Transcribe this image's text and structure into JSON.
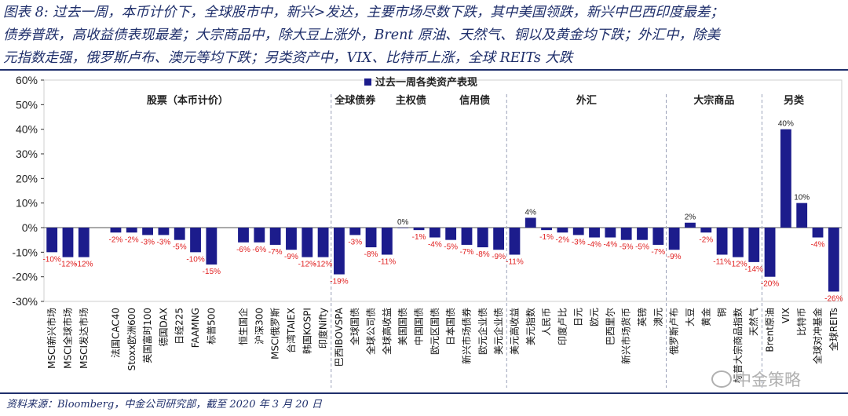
{
  "header": {
    "title_line1": "图表 8: 过去一周，本币计价下，全球股市中，新兴>发达，主要市场尽数下跌，其中美国领跌，新兴中巴西印度最差；",
    "title_line2": "债券普跌，高收益债表现最差；大宗商品中，除大豆上涨外，Brent 原油、天然气、铜以及黄金均下跌；外汇中，除美",
    "title_line3": "元指数走强，俄罗斯卢布、澳元等均下跌；另类资产中，VIX、比特币上涨，全球 REITs 大跌"
  },
  "footer": {
    "source": "资料来源：Bloomberg，中金公司研究部，截至 2020 年 3 月 20 日",
    "watermark": "中金策略"
  },
  "colors": {
    "bar": "#1c1c8c",
    "negative_label": "#e02020",
    "positive_label": "#222222",
    "divider": "#9aa0b8"
  },
  "chart_data": {
    "type": "bar",
    "legend": "过去一周各类资产表现",
    "legend_position": "top-center",
    "ylim": [
      -30,
      60
    ],
    "yticks": [
      "60%",
      "50%",
      "40%",
      "30%",
      "20%",
      "10%",
      "0%",
      "-10%",
      "-20%",
      "-30%"
    ],
    "groups": [
      {
        "label": "股票（本币计价）",
        "from": 0,
        "to": 17
      },
      {
        "label": "全球债券",
        "from": 18,
        "to": 20
      },
      {
        "label": "主权债",
        "from": 21,
        "to": 24
      },
      {
        "label": "信用债",
        "from": 25,
        "to": 28
      },
      {
        "label": "外汇",
        "from": 29,
        "to": 38
      },
      {
        "label": "大宗商品",
        "from": 39,
        "to": 44
      },
      {
        "label": "另类",
        "from": 45,
        "to": 48
      }
    ],
    "categories": [
      "MSCI新兴市场",
      "MSCI全球市场",
      "MSCI发达市场",
      "",
      "法国CAC40",
      "Stoxx欧洲600",
      "英国富时100",
      "德国DAX",
      "日经225",
      "FAAMNG",
      "标普500",
      "",
      "恒生国企",
      "沪深300",
      "MSCI俄罗斯",
      "台湾TAIEX",
      "韩国KOSPI",
      "印度Nifty",
      "巴西IBOVSPA",
      "全球国债",
      "全球公司债",
      "全球高收益",
      "美国国债",
      "中国国债",
      "欧元区国债",
      "日本国债",
      "新兴市场债券",
      "欧元企业债",
      "美元企业债",
      "美元高收益",
      "美元指数",
      "人民币",
      "印度卢比",
      "日元",
      "欧元",
      "巴西里尔",
      "新兴市场货币",
      "英镑",
      "澳元",
      "俄罗斯卢布",
      "大豆",
      "黄金",
      "铜",
      "标普大宗商品指数",
      "天然气",
      "Brent原油",
      "VIX",
      "比特币",
      "全球对冲基金",
      "全球REITs"
    ],
    "values": [
      -10,
      -12,
      -12,
      null,
      -2,
      -2,
      -3,
      -3,
      -5,
      -10,
      -15,
      null,
      -6,
      -6,
      -7,
      -9,
      -12,
      -12,
      -19,
      -3,
      -8,
      -11,
      0,
      -1,
      -4,
      -5,
      -7,
      -8,
      -9,
      -11,
      4,
      -1,
      -2,
      -3,
      -4,
      -4,
      -5,
      -5,
      -7,
      -9,
      2,
      -2,
      -11,
      -12,
      -14,
      -20,
      40,
      10,
      -4,
      -26
    ],
    "data_labels": [
      "-10%",
      "-12%",
      "-12%",
      "",
      "-2%",
      "-2%",
      "-3%",
      "-3%",
      "-5%",
      "-10%",
      "-15%",
      "",
      "-6%",
      "-6%",
      "-7%",
      "-9%",
      "-12%",
      "-12%",
      "-19%",
      "-3%",
      "-8%",
      "-11%",
      "0%",
      "-1%",
      "-4%",
      "-5%",
      "-7%",
      "-8%",
      "-9%",
      "-11%",
      "4%",
      "-1%",
      "-2%",
      "-3%",
      "-4%",
      "-4%",
      "-5%",
      "-5%",
      "-7%",
      "-9%",
      "2%",
      "-2%",
      "-11%",
      "-12%",
      "-14%",
      "-20%",
      "40%",
      "10%",
      "-4%",
      "-26%"
    ]
  }
}
